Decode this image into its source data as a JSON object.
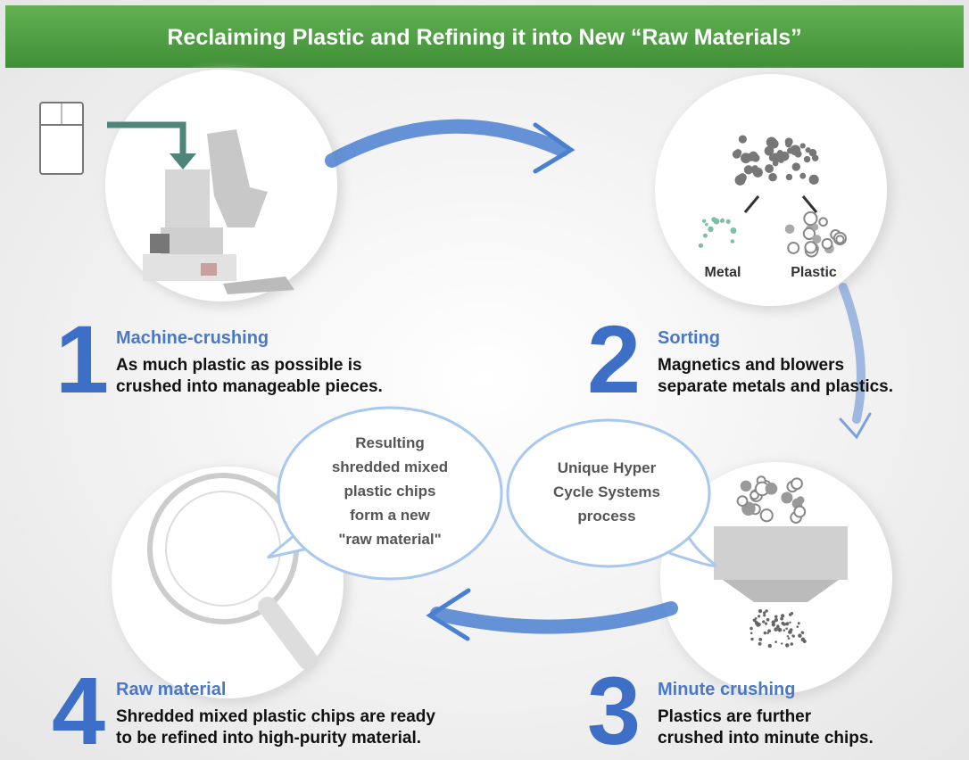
{
  "title": "Reclaiming Plastic and Refining it into New “Raw Materials”",
  "steps": [
    {
      "number": "1",
      "title": "Machine-crushing",
      "lines": [
        "As much plastic as possible is",
        "crushed into manageable pieces."
      ]
    },
    {
      "number": "2",
      "title": "Sorting",
      "lines": [
        "Magnetics and blowers",
        "separate metals and plastics."
      ],
      "labels": [
        "Metal",
        "Plastic"
      ]
    },
    {
      "number": "3",
      "title": "Minute crushing",
      "lines": [
        "Plastics are further",
        "crushed into minute chips."
      ]
    },
    {
      "number": "4",
      "title": "Raw material",
      "lines": [
        "Shredded mixed plastic chips are ready",
        "to be refined into high-purity material."
      ]
    }
  ],
  "bubbles": [
    {
      "lines": [
        "Unique Hyper",
        "Cycle Systems",
        "process"
      ]
    },
    {
      "lines": [
        "Resulting",
        "shredded mixed",
        "plastic chips",
        "form a new",
        "\"raw material\""
      ]
    }
  ]
}
